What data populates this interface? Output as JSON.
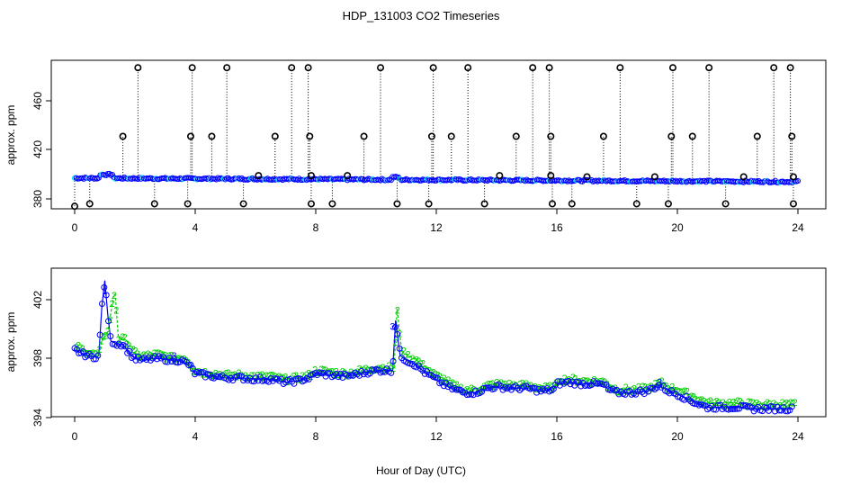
{
  "colors": {
    "background": "#ffffff",
    "black": "#000000",
    "blue": "#0000ff",
    "cyan": "#00e5ee",
    "green": "#00cd00"
  },
  "chart_data": [
    {
      "type": "scatter",
      "title": "HDP_131003  CO2 Timeseries",
      "xlabel": "",
      "ylabel": "approx. ppm",
      "xlim": [
        0,
        24
      ],
      "ylim": [
        373,
        492
      ],
      "x_ticks": [
        0,
        4,
        8,
        12,
        16,
        20,
        24
      ],
      "y_ticks": [
        380,
        420,
        460
      ],
      "x_tick_labels": [
        "0",
        "4",
        "8",
        "12",
        "16",
        "20",
        "24"
      ],
      "y_tick_labels": [
        "380",
        "420",
        "460"
      ],
      "baseline": {
        "start": 397,
        "end": 394
      },
      "spikes": [
        {
          "x": 0.0,
          "y": 374
        },
        {
          "x": 0.5,
          "y": 376
        },
        {
          "x": 1.6,
          "y": 431
        },
        {
          "x": 2.1,
          "y": 487
        },
        {
          "x": 2.65,
          "y": 376
        },
        {
          "x": 3.75,
          "y": 376
        },
        {
          "x": 3.85,
          "y": 431
        },
        {
          "x": 3.9,
          "y": 487
        },
        {
          "x": 4.55,
          "y": 431
        },
        {
          "x": 5.05,
          "y": 487
        },
        {
          "x": 5.6,
          "y": 376
        },
        {
          "x": 6.65,
          "y": 431
        },
        {
          "x": 7.2,
          "y": 487
        },
        {
          "x": 7.75,
          "y": 487
        },
        {
          "x": 7.8,
          "y": 431
        },
        {
          "x": 7.85,
          "y": 376
        },
        {
          "x": 8.55,
          "y": 376
        },
        {
          "x": 9.6,
          "y": 431
        },
        {
          "x": 10.15,
          "y": 487
        },
        {
          "x": 10.7,
          "y": 376
        },
        {
          "x": 11.75,
          "y": 376
        },
        {
          "x": 11.85,
          "y": 431
        },
        {
          "x": 11.9,
          "y": 487
        },
        {
          "x": 12.5,
          "y": 431
        },
        {
          "x": 13.05,
          "y": 487
        },
        {
          "x": 13.6,
          "y": 376
        },
        {
          "x": 14.65,
          "y": 431
        },
        {
          "x": 15.2,
          "y": 487
        },
        {
          "x": 15.75,
          "y": 487
        },
        {
          "x": 15.8,
          "y": 431
        },
        {
          "x": 15.85,
          "y": 376
        },
        {
          "x": 16.5,
          "y": 376
        },
        {
          "x": 17.55,
          "y": 431
        },
        {
          "x": 18.1,
          "y": 487
        },
        {
          "x": 18.65,
          "y": 376
        },
        {
          "x": 19.7,
          "y": 376
        },
        {
          "x": 19.8,
          "y": 431
        },
        {
          "x": 19.85,
          "y": 487
        },
        {
          "x": 20.5,
          "y": 431
        },
        {
          "x": 21.05,
          "y": 487
        },
        {
          "x": 21.6,
          "y": 376
        },
        {
          "x": 22.65,
          "y": 431
        },
        {
          "x": 23.2,
          "y": 487
        },
        {
          "x": 23.75,
          "y": 487
        },
        {
          "x": 23.8,
          "y": 431
        },
        {
          "x": 23.85,
          "y": 376
        }
      ],
      "small_markers": [
        {
          "x": 6.1,
          "y": 399
        },
        {
          "x": 9.05,
          "y": 399
        },
        {
          "x": 14.1,
          "y": 399
        },
        {
          "x": 17.0,
          "y": 398
        },
        {
          "x": 19.25,
          "y": 398
        },
        {
          "x": 22.2,
          "y": 398
        },
        {
          "x": 23.85,
          "y": 398
        },
        {
          "x": 7.85,
          "y": 399
        },
        {
          "x": 15.8,
          "y": 399
        }
      ]
    },
    {
      "type": "line",
      "title": "",
      "xlabel": "Hour of Day (UTC)",
      "ylabel": "approx. ppm",
      "xlim": [
        0,
        24
      ],
      "ylim": [
        394,
        403.8
      ],
      "x_ticks": [
        0,
        4,
        8,
        12,
        16,
        20,
        24
      ],
      "y_ticks": [
        394,
        398,
        402
      ],
      "x_tick_labels": [
        "0",
        "4",
        "8",
        "12",
        "16",
        "20",
        "24"
      ],
      "y_tick_labels": [
        "394",
        "398",
        "402"
      ],
      "series": [
        {
          "name": "1",
          "marker": "o",
          "color": "#0000ff",
          "x": [
            0.0,
            0.3,
            0.6,
            0.8,
            0.9,
            1.0,
            1.1,
            1.2,
            1.4,
            1.6,
            1.8,
            2.0,
            2.3,
            2.6,
            2.9,
            3.2,
            3.5,
            3.8,
            4.0,
            4.3,
            4.6,
            5.0,
            5.5,
            6.0,
            6.5,
            7.0,
            7.4,
            7.8,
            8.0,
            8.5,
            9.0,
            9.5,
            10.0,
            10.4,
            10.55,
            10.65,
            10.8,
            11.0,
            11.3,
            11.6,
            11.9,
            12.2,
            12.5,
            12.9,
            13.3,
            13.7,
            14.0,
            14.5,
            15.0,
            15.5,
            15.9,
            16.0,
            16.4,
            16.8,
            17.2,
            17.6,
            17.7,
            18.0,
            18.5,
            19.0,
            19.4,
            19.7,
            20.0,
            20.3,
            20.6,
            21.0,
            21.5,
            22.0,
            22.5,
            23.0,
            23.4,
            23.8
          ],
          "values": [
            398.6,
            398.3,
            398.1,
            398.2,
            401.5,
            403.3,
            401.0,
            399.2,
            399.0,
            399.0,
            398.4,
            398.0,
            397.9,
            398.0,
            398.0,
            397.9,
            397.9,
            397.6,
            397.0,
            396.9,
            396.8,
            396.7,
            396.7,
            396.6,
            396.6,
            396.4,
            396.5,
            396.7,
            397.0,
            396.9,
            396.8,
            397.0,
            397.2,
            397.2,
            397.2,
            400.6,
            398.2,
            397.9,
            397.6,
            397.1,
            396.7,
            396.3,
            396.0,
            395.7,
            395.7,
            396.0,
            396.1,
            396.0,
            396.0,
            395.8,
            395.9,
            396.3,
            396.4,
            396.3,
            396.3,
            396.2,
            395.9,
            395.7,
            395.7,
            395.8,
            396.2,
            395.8,
            395.6,
            395.3,
            395.0,
            394.7,
            394.7,
            394.7,
            394.6,
            394.6,
            394.6,
            394.6
          ]
        },
        {
          "name": "2",
          "marker": "2",
          "color": "#00cd00",
          "x": [
            0.0,
            0.3,
            0.6,
            0.8,
            0.95,
            1.1,
            1.3,
            1.35,
            1.45,
            1.7,
            1.9,
            2.1,
            2.4,
            2.7,
            3.0,
            3.3,
            3.6,
            3.8,
            4.0,
            4.3,
            4.6,
            5.0,
            5.5,
            6.0,
            6.5,
            7.0,
            7.4,
            7.8,
            8.0,
            8.5,
            9.0,
            9.5,
            10.0,
            10.4,
            10.6,
            10.7,
            10.85,
            11.05,
            11.35,
            11.65,
            11.95,
            12.25,
            12.55,
            12.95,
            13.35,
            13.75,
            14.05,
            14.55,
            15.05,
            15.55,
            15.95,
            16.05,
            16.45,
            16.85,
            17.25,
            17.65,
            17.75,
            18.05,
            18.55,
            19.05,
            19.45,
            19.75,
            20.05,
            20.35,
            20.65,
            21.05,
            21.55,
            22.05,
            22.55,
            23.05,
            23.45,
            23.85
          ],
          "values": [
            398.9,
            398.6,
            398.3,
            398.3,
            399.6,
            399.8,
            402.4,
            402.3,
            399.4,
            399.3,
            398.6,
            398.2,
            398.2,
            398.3,
            398.2,
            398.0,
            398.1,
            397.8,
            397.2,
            397.1,
            397.0,
            396.9,
            396.9,
            396.8,
            396.8,
            396.6,
            396.7,
            396.9,
            397.2,
            397.1,
            397.0,
            397.2,
            397.4,
            397.4,
            397.4,
            401.4,
            398.5,
            398.2,
            397.9,
            397.4,
            396.9,
            396.6,
            396.2,
            395.9,
            395.9,
            396.2,
            396.3,
            396.2,
            396.2,
            396.0,
            396.1,
            396.6,
            396.6,
            396.5,
            396.5,
            396.4,
            396.1,
            395.9,
            395.9,
            396.0,
            396.4,
            396.0,
            395.9,
            395.6,
            395.3,
            395.0,
            395.0,
            395.0,
            394.9,
            394.9,
            394.9,
            394.9
          ]
        }
      ]
    }
  ]
}
